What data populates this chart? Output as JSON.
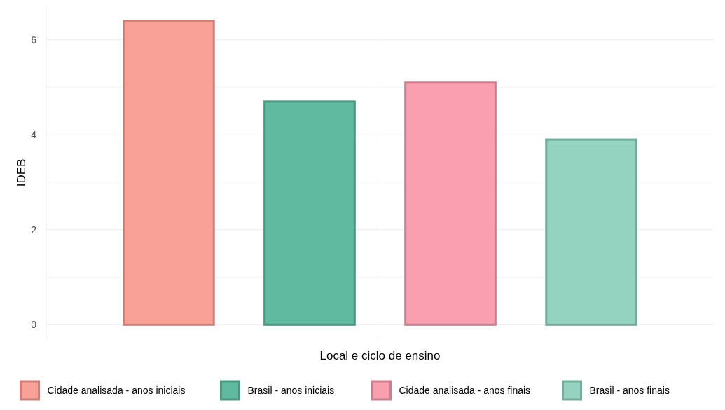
{
  "chart_data": {
    "type": "bar",
    "xlabel": "Local e ciclo de ensino",
    "ylabel": "IDEB",
    "categories": [
      null,
      null,
      null,
      null
    ],
    "series": [
      {
        "name": "Cidade analisada - anos iniciais",
        "color": "#f9a097",
        "values": [
          6.4,
          null,
          null,
          null
        ]
      },
      {
        "name": "Brasil - anos iniciais",
        "color": "#5fba9f",
        "values": [
          null,
          4.7,
          null,
          null
        ]
      },
      {
        "name": "Cidade analisada - anos finais",
        "color": "#f99fb0",
        "values": [
          null,
          null,
          5.1,
          null
        ]
      },
      {
        "name": "Brasil - anos finais",
        "color": "#93d3bf",
        "values": [
          null,
          null,
          null,
          3.9
        ]
      }
    ],
    "ylim": [
      -0.32,
      6.72
    ],
    "yticks": [
      0,
      {
        "value": 1,
        "label": null
      },
      2,
      {
        "value": 3,
        "label": null
      },
      4,
      {
        "value": 5,
        "label": null
      },
      6
    ],
    "grid": true,
    "legend": "bottom"
  }
}
